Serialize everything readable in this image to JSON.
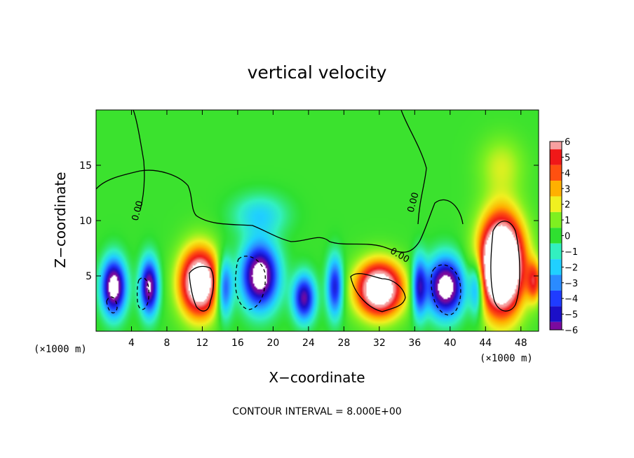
{
  "chart_data": {
    "type": "heatmap",
    "title": "vertical velocity",
    "xlabel": "X−coordinate",
    "ylabel": "Z−coordinate",
    "x_unit_label": "(×1000 m)",
    "x_unit_label_right": "(×1000 m)",
    "footer": "CONTOUR INTERVAL = 8.000E+00",
    "contour_label": "0.00",
    "xlim": [
      0,
      50
    ],
    "ylim": [
      0,
      20
    ],
    "xticks": [
      4,
      8,
      12,
      16,
      20,
      24,
      28,
      32,
      36,
      40,
      44,
      48
    ],
    "yticks": [
      5,
      10,
      15
    ],
    "colorbar": {
      "ticks": [
        6,
        5,
        4,
        3,
        2,
        1,
        0,
        -1,
        -2,
        -3,
        -4,
        -5,
        -6
      ],
      "tick_labels": [
        "6",
        "5",
        "4",
        "3",
        "2",
        "1",
        "0",
        "−1",
        "−2",
        "−3",
        "−4",
        "−5",
        "−6"
      ],
      "range": [
        -6,
        6
      ],
      "colors": [
        "#7a0a9e",
        "#1b0fc8",
        "#1f3cff",
        "#2a8bff",
        "#20d0ff",
        "#32f0c0",
        "#2fe030",
        "#7ef020",
        "#f0f020",
        "#ffb000",
        "#ff5010",
        "#f01818",
        "#f7a0a0"
      ]
    },
    "cells": [
      {
        "x": 2,
        "z": 4,
        "w": -8,
        "sx": 1.3,
        "sz": 2.4
      },
      {
        "x": 6,
        "z": 4,
        "w": -7,
        "sx": 1.0,
        "sz": 2.4
      },
      {
        "x": 11.7,
        "z": 4.4,
        "w": 9,
        "sx": 2.2,
        "sz": 3.0
      },
      {
        "x": 18.5,
        "z": 5,
        "w": -8,
        "sx": 2.0,
        "sz": 2.8
      },
      {
        "x": 23.5,
        "z": 3,
        "w": -6,
        "sx": 1.2,
        "sz": 2.0
      },
      {
        "x": 32,
        "z": 3.8,
        "w": 9,
        "sx": 2.6,
        "sz": 2.4
      },
      {
        "x": 39.5,
        "z": 4,
        "w": -8,
        "sx": 2.0,
        "sz": 2.5
      },
      {
        "x": 45.8,
        "z": 6,
        "w": 13,
        "sx": 2.4,
        "sz": 4.2
      },
      {
        "x": 49.5,
        "z": 4.5,
        "w": 4,
        "sx": 0.8,
        "sz": 1.8
      },
      {
        "x": 14.5,
        "z": 4,
        "w": -5,
        "sx": 0.9,
        "sz": 2.6
      },
      {
        "x": 27,
        "z": 4,
        "w": -5,
        "sx": 0.9,
        "sz": 2.6
      },
      {
        "x": 36.5,
        "z": 4,
        "w": -5,
        "sx": 0.8,
        "sz": 2.6
      },
      {
        "x": 43,
        "z": 4,
        "w": -4,
        "sx": 0.8,
        "sz": 2.6
      },
      {
        "x": 18.5,
        "z": 10.5,
        "w": -2,
        "sx": 3.0,
        "sz": 1.8
      },
      {
        "x": 45.8,
        "z": 15,
        "w": 1.5,
        "sx": 2.5,
        "sz": 2.5
      }
    ]
  }
}
